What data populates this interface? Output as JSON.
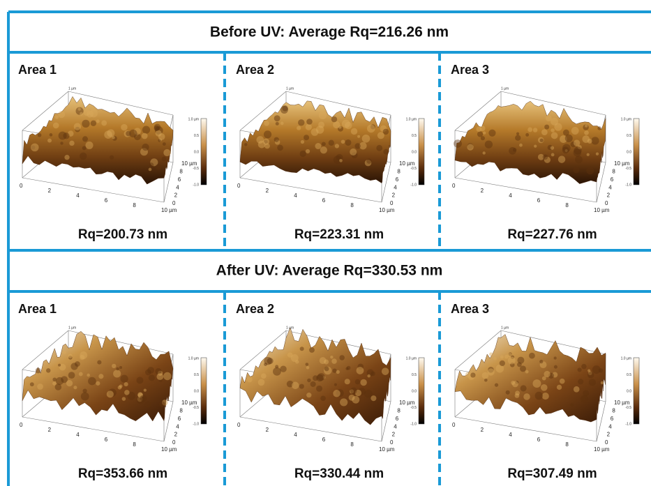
{
  "sections": [
    {
      "title": "Before UV: Average Rq=216.26 nm",
      "areas": [
        {
          "label": "Area 1",
          "rq": "Rq=200.73 nm"
        },
        {
          "label": "Area 2",
          "rq": "Rq=223.31 nm"
        },
        {
          "label": "Area 3",
          "rq": "Rq=227.76 nm"
        }
      ]
    },
    {
      "title": "After UV: Average Rq=330.53 nm",
      "areas": [
        {
          "label": "Area 1",
          "rq": "Rq=353.66 nm"
        },
        {
          "label": "Area 2",
          "rq": "Rq=330.44 nm"
        },
        {
          "label": "Area 3",
          "rq": "Rq=307.49 nm"
        }
      ]
    }
  ],
  "surface_axes": {
    "x_ticks": [
      "0",
      "2",
      "4",
      "6",
      "8",
      "10 µm"
    ],
    "y_ticks": [
      "0",
      "2",
      "4",
      "6",
      "8",
      "10 µm"
    ],
    "z_label": "1 µm",
    "colorbar_ticks": [
      "1.0 µm",
      "0.5",
      "0.0",
      "-0.5",
      "-1.0"
    ]
  }
}
